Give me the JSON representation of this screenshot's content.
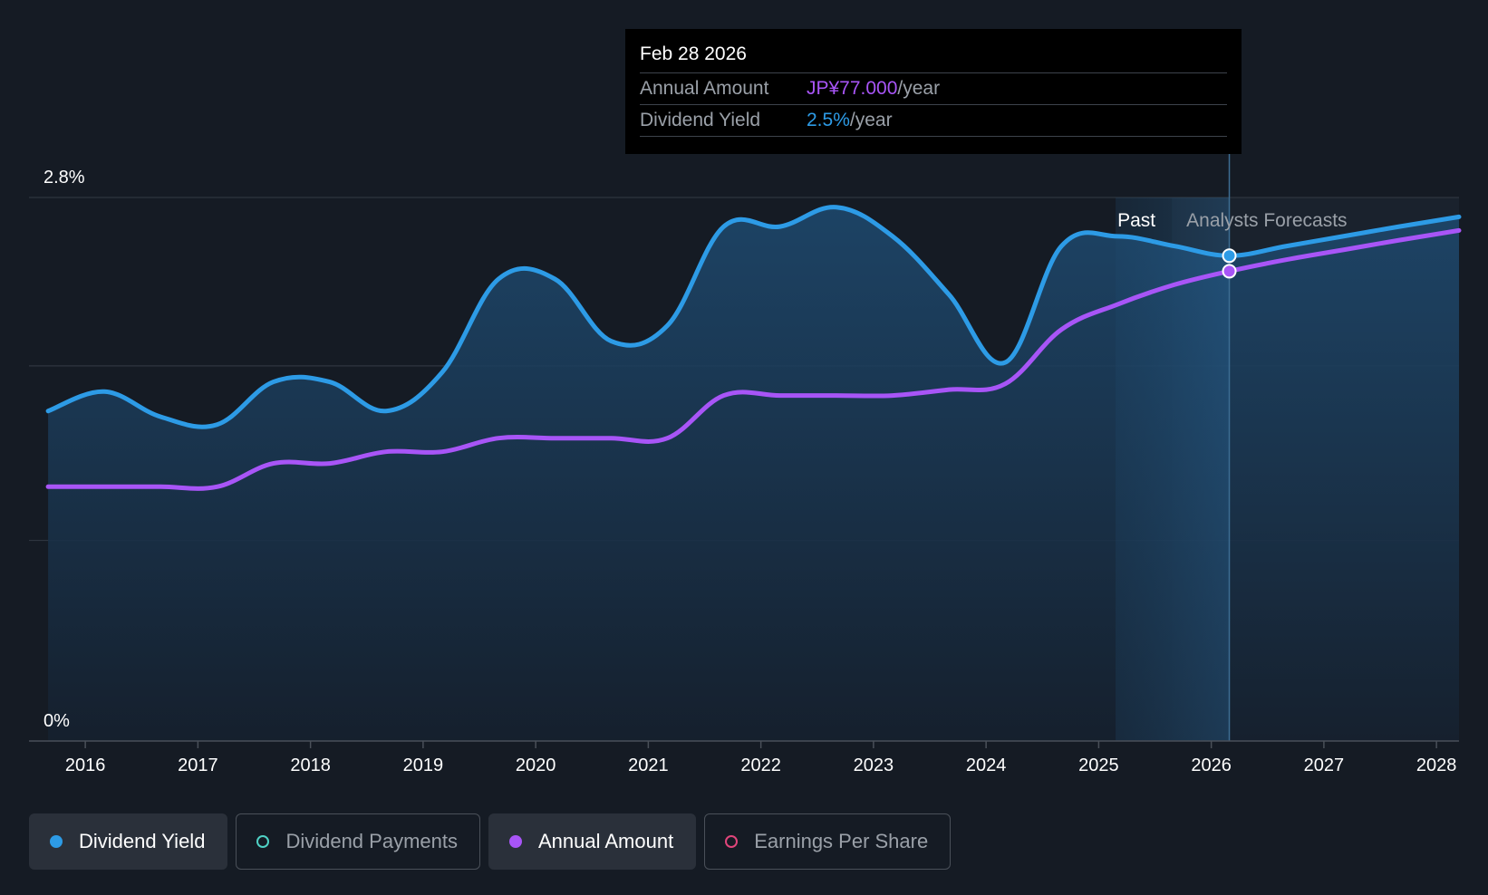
{
  "tooltip": {
    "date": "Feb 28 2026",
    "rows": [
      {
        "label": "Annual Amount",
        "value": "JP¥77.000",
        "unit": "/year"
      },
      {
        "label": "Dividend Yield",
        "value": "2.5%",
        "unit": "/year"
      }
    ]
  },
  "legend": [
    {
      "label": "Dividend Yield",
      "color": "#2d9be6",
      "style": "filled",
      "active": true
    },
    {
      "label": "Dividend Payments",
      "color": "#4fd1c5",
      "style": "outline",
      "active": false
    },
    {
      "label": "Annual Amount",
      "color": "#a855f7",
      "style": "filled",
      "active": true
    },
    {
      "label": "Earnings Per Share",
      "color": "#e0457b",
      "style": "outline",
      "active": false
    }
  ],
  "chart_data": {
    "type": "line",
    "title": "",
    "xlabel": "",
    "ylabel": "",
    "x_range": [
      2015.5,
      2028.2
    ],
    "y_axis_labels": [
      "2.8%",
      "0%"
    ],
    "y_axis_values": [
      2.8,
      0.0
    ],
    "ylim": [
      0,
      2.8
    ],
    "x_ticks": [
      2016,
      2017,
      2018,
      2019,
      2020,
      2021,
      2022,
      2023,
      2024,
      2025,
      2026,
      2027,
      2028
    ],
    "x_tick_labels": [
      "2016",
      "2017",
      "2018",
      "2019",
      "2020",
      "2021",
      "2022",
      "2023",
      "2024",
      "2025",
      "2026",
      "2027",
      "2028"
    ],
    "regions": {
      "past_label": "Past",
      "forecast_label": "Analysts Forecasts",
      "past_end_x": 2025.65
    },
    "highlight": {
      "x": 2026.16,
      "start_x": 2025.15
    },
    "series": [
      {
        "name": "Dividend Yield",
        "color": "#2d9be6",
        "filled": true,
        "points": [
          [
            2015.67,
            1.7
          ],
          [
            2016.17,
            1.8
          ],
          [
            2016.67,
            1.67
          ],
          [
            2017.17,
            1.63
          ],
          [
            2017.67,
            1.85
          ],
          [
            2018.17,
            1.85
          ],
          [
            2018.67,
            1.7
          ],
          [
            2019.17,
            1.9
          ],
          [
            2019.67,
            2.38
          ],
          [
            2020.17,
            2.38
          ],
          [
            2020.67,
            2.06
          ],
          [
            2021.17,
            2.14
          ],
          [
            2021.67,
            2.65
          ],
          [
            2022.17,
            2.65
          ],
          [
            2022.67,
            2.75
          ],
          [
            2023.17,
            2.6
          ],
          [
            2023.67,
            2.3
          ],
          [
            2024.17,
            1.95
          ],
          [
            2024.67,
            2.55
          ],
          [
            2025.17,
            2.6
          ],
          [
            2025.67,
            2.55
          ],
          [
            2026.16,
            2.5
          ],
          [
            2026.67,
            2.55
          ],
          [
            2027.17,
            2.6
          ],
          [
            2027.67,
            2.65
          ],
          [
            2028.2,
            2.7
          ]
        ]
      },
      {
        "name": "Annual Amount",
        "color": "#a855f7",
        "filled": false,
        "points": [
          [
            2015.67,
            1.31
          ],
          [
            2016.17,
            1.31
          ],
          [
            2016.67,
            1.31
          ],
          [
            2017.17,
            1.31
          ],
          [
            2017.67,
            1.43
          ],
          [
            2018.17,
            1.43
          ],
          [
            2018.67,
            1.49
          ],
          [
            2019.17,
            1.49
          ],
          [
            2019.67,
            1.56
          ],
          [
            2020.17,
            1.56
          ],
          [
            2020.67,
            1.56
          ],
          [
            2021.17,
            1.56
          ],
          [
            2021.67,
            1.78
          ],
          [
            2022.17,
            1.78
          ],
          [
            2022.67,
            1.78
          ],
          [
            2023.17,
            1.78
          ],
          [
            2023.67,
            1.81
          ],
          [
            2024.17,
            1.84
          ],
          [
            2024.67,
            2.12
          ],
          [
            2025.17,
            2.25
          ],
          [
            2025.67,
            2.35
          ],
          [
            2026.16,
            2.42
          ],
          [
            2026.67,
            2.48
          ],
          [
            2027.17,
            2.53
          ],
          [
            2027.67,
            2.58
          ],
          [
            2028.2,
            2.63
          ]
        ]
      }
    ]
  }
}
